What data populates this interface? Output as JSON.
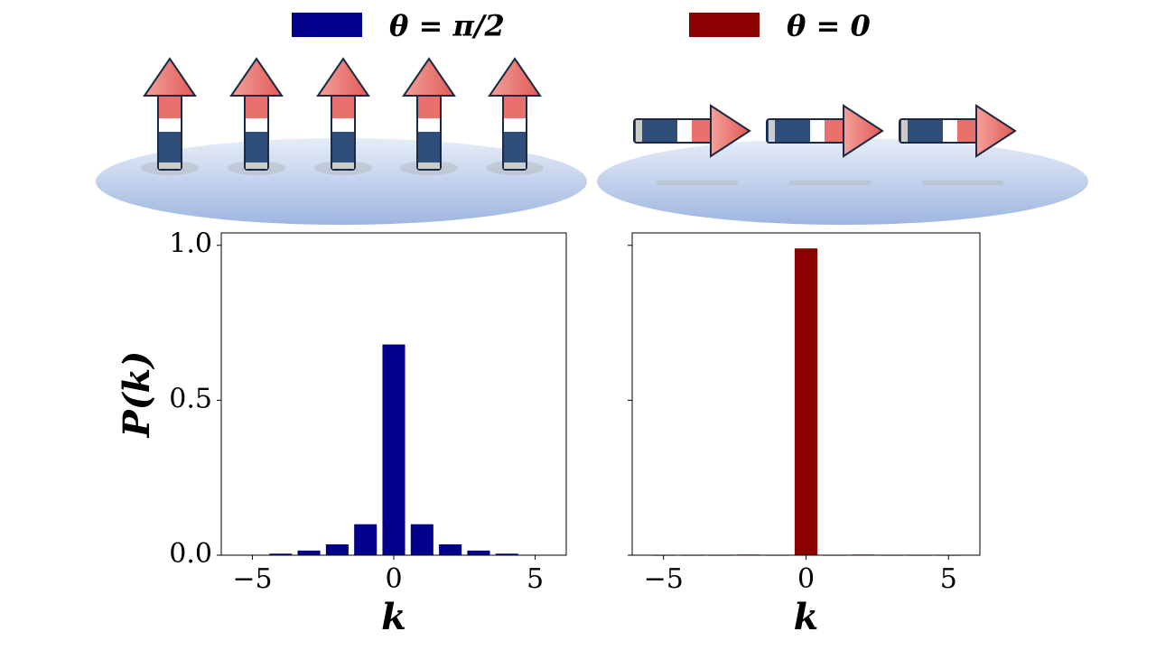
{
  "chart_data": [
    {
      "type": "bar",
      "x": [
        -5,
        -4,
        -3,
        -2,
        -1,
        0,
        1,
        2,
        3,
        4,
        5
      ],
      "series": [
        {
          "name": "θ = π/2",
          "color": "#00008b",
          "values": [
            0.001,
            0.005,
            0.015,
            0.035,
            0.1,
            0.68,
            0.1,
            0.035,
            0.015,
            0.005,
            0.001
          ]
        }
      ],
      "xlim": [
        -6.1,
        6.1
      ],
      "ylim": [
        0,
        1.04
      ],
      "xticks": [
        -5,
        0,
        5
      ],
      "yticks": [
        {
          "value": 0,
          "label": "0.0"
        },
        {
          "value": 0.5,
          "label": "0.5"
        },
        {
          "value": 1,
          "label": "1.0"
        }
      ],
      "xlabel": "k",
      "ylabel": "P(k)"
    },
    {
      "type": "bar",
      "x": [
        -5,
        -4,
        -3,
        -2,
        -1,
        0,
        1,
        2,
        3,
        4,
        5
      ],
      "series": [
        {
          "name": "θ = 0",
          "color": "#8b0000",
          "values": [
            0,
            0,
            0,
            0.002,
            0,
            0.99,
            0,
            0.002,
            0,
            0,
            0
          ]
        }
      ],
      "xlim": [
        -6.1,
        6.1
      ],
      "ylim": [
        0,
        1.04
      ],
      "xticks": [
        -5,
        0,
        5
      ],
      "yticks": [
        0,
        0.5,
        1
      ],
      "xlabel": "k"
    }
  ]
}
